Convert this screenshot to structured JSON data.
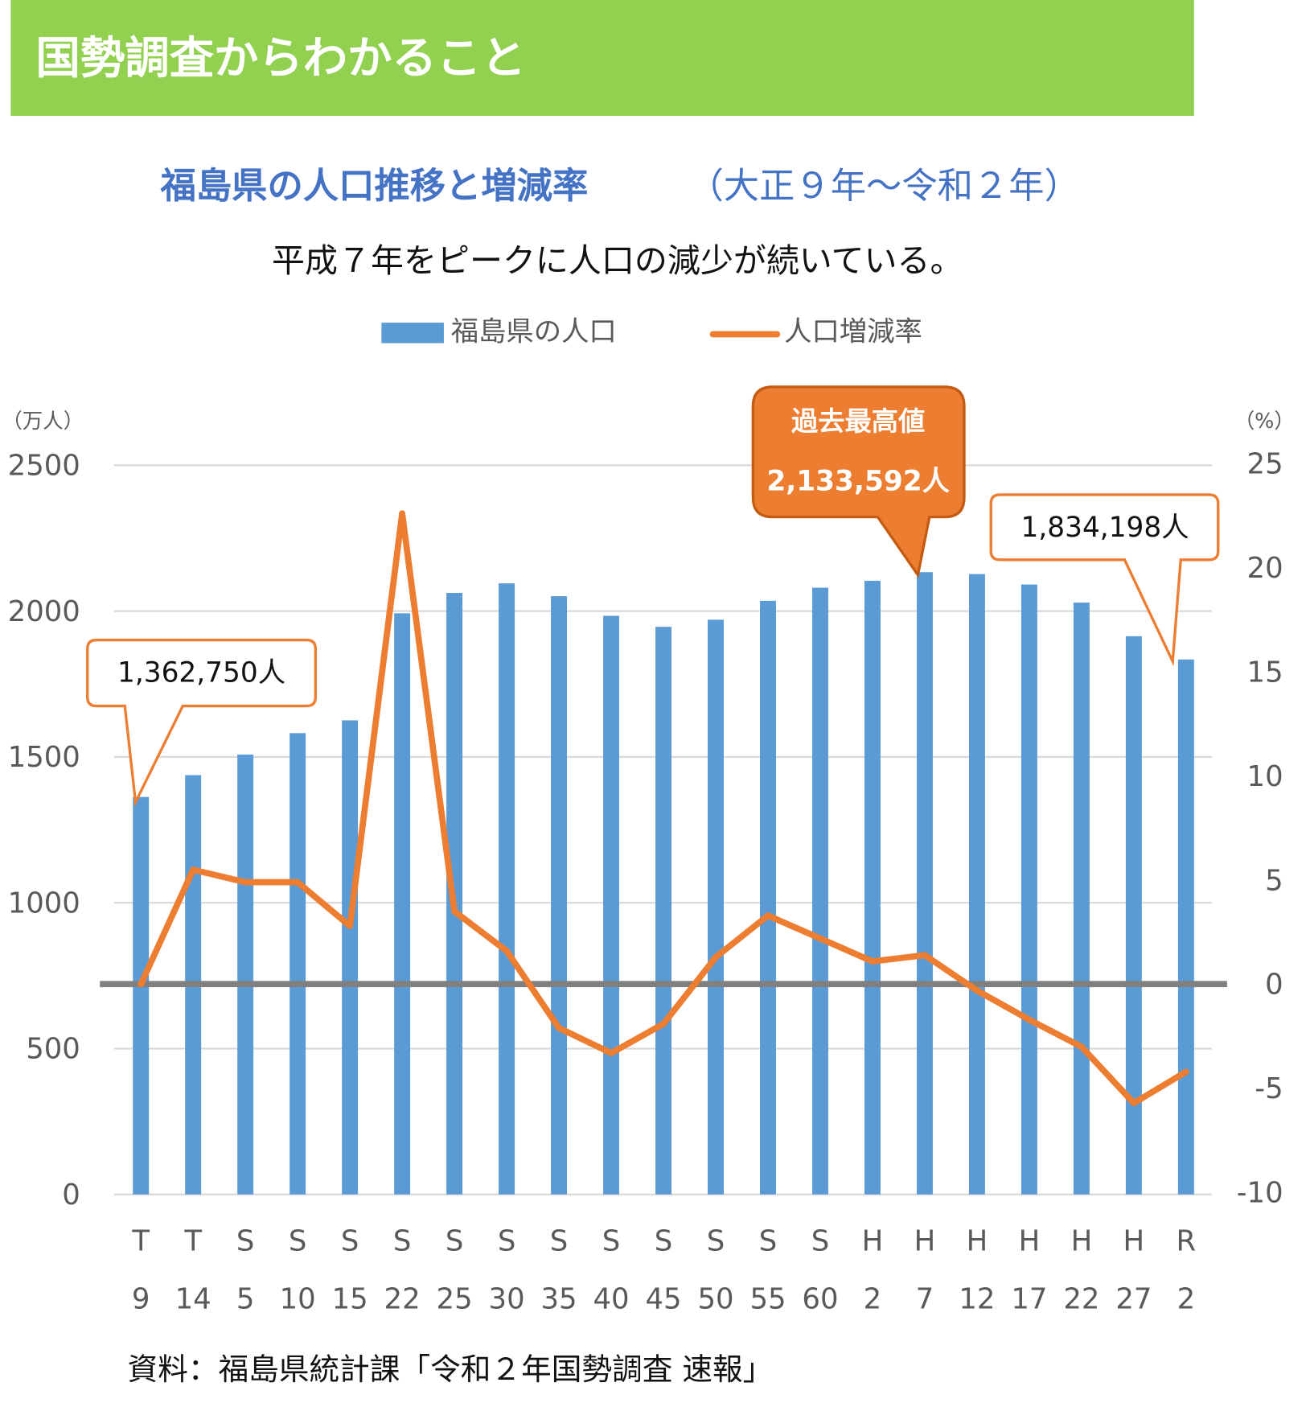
{
  "header": {
    "title": "国勢調査からわかること",
    "bg_color": "#92D050"
  },
  "subtitle": {
    "main": "福島県の人口推移と増減率",
    "period": "（大正９年～令和２年）",
    "color": "#4472C4"
  },
  "summary": "平成７年をピークに人口の減少が続いている。",
  "source": "資料：福島県統計課「令和２年国勢調査 速報」",
  "chart_data": {
    "type": "bar+line",
    "legend_position": "top",
    "grid": true,
    "left_axis": {
      "unit_label": "（万人）",
      "ylim": [
        0,
        2500
      ],
      "ticks": [
        "2500",
        "2000",
        "1500",
        "1000",
        "500",
        "0"
      ]
    },
    "right_axis": {
      "unit_label": "（%）",
      "ylim": [
        -10,
        25
      ],
      "ticks": [
        "25",
        "20",
        "15",
        "10",
        "5",
        "0",
        "-5",
        "-10"
      ]
    },
    "categories_era": [
      "T",
      "T",
      "S",
      "S",
      "S",
      "S",
      "S",
      "S",
      "S",
      "S",
      "S",
      "S",
      "S",
      "S",
      "H",
      "H",
      "H",
      "H",
      "H",
      "H",
      "R"
    ],
    "categories_year": [
      "9",
      "14",
      "5",
      "10",
      "15",
      "22",
      "25",
      "30",
      "35",
      "40",
      "45",
      "50",
      "55",
      "60",
      "2",
      "7",
      "12",
      "17",
      "22",
      "27",
      "2"
    ],
    "series": [
      {
        "name": "福島県の人口",
        "type": "bar",
        "axis": "left",
        "color": "#5B9BD5",
        "values": [
          1362.75,
          1437.6,
          1508.2,
          1581.6,
          1625.5,
          1992.5,
          2062.4,
          2095.2,
          2051.1,
          1983.8,
          1946.1,
          1970.6,
          2035.3,
          2080.3,
          2104.1,
          2133.6,
          2126.9,
          2091.3,
          2029.1,
          1914.0,
          1834.2
        ]
      },
      {
        "name": "人口増減率",
        "type": "line",
        "axis": "right",
        "color": "#ED7D31",
        "values": [
          0,
          5.5,
          4.9,
          4.9,
          2.8,
          22.6,
          3.5,
          1.6,
          -2.1,
          -3.3,
          -1.9,
          1.3,
          3.3,
          2.2,
          1.1,
          1.4,
          -0.3,
          -1.7,
          -3.0,
          -5.7,
          -4.2
        ]
      }
    ],
    "annotations": {
      "first": "1,362,750人",
      "peak_title": "過去最高値",
      "peak_value": "2,133,592人",
      "latest": "1,834,198人"
    }
  }
}
